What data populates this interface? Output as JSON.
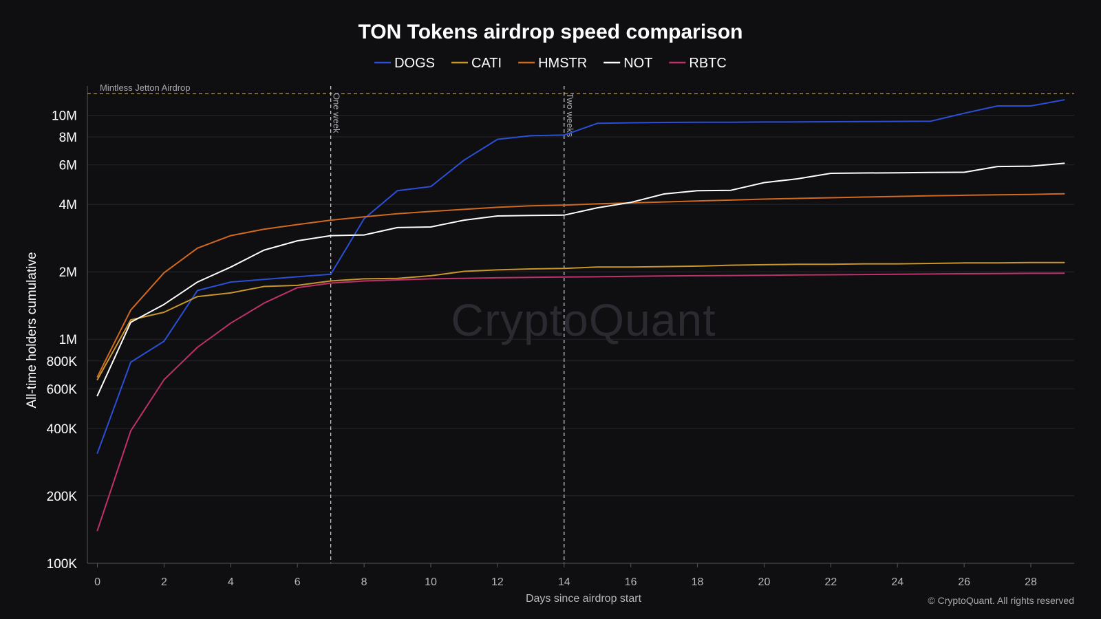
{
  "chart_data": {
    "type": "line",
    "title": "TON Tokens airdrop speed comparison",
    "xlabel": "Days since airdrop start",
    "ylabel": "All-time holders cumulative",
    "yscale": "log",
    "xlim": [
      -0.3,
      29.3
    ],
    "ylim": [
      100000,
      13500000
    ],
    "x_ticks": [
      0,
      2,
      4,
      6,
      8,
      10,
      12,
      14,
      16,
      18,
      20,
      22,
      24,
      26,
      28
    ],
    "y_ticks": [
      {
        "value": 100000,
        "label": "100K"
      },
      {
        "value": 200000,
        "label": "200K"
      },
      {
        "value": 400000,
        "label": "400K"
      },
      {
        "value": 600000,
        "label": "600K"
      },
      {
        "value": 800000,
        "label": "800K"
      },
      {
        "value": 1000000,
        "label": "1M"
      },
      {
        "value": 2000000,
        "label": "2M"
      },
      {
        "value": 4000000,
        "label": "4M"
      },
      {
        "value": 6000000,
        "label": "6M"
      },
      {
        "value": 8000000,
        "label": "8M"
      },
      {
        "value": 10000000,
        "label": "10M"
      }
    ],
    "grid": true,
    "legend": "top-center",
    "x": [
      0,
      1,
      2,
      3,
      4,
      5,
      6,
      7,
      8,
      9,
      10,
      11,
      12,
      13,
      14,
      15,
      16,
      17,
      18,
      19,
      20,
      21,
      22,
      23,
      24,
      25,
      26,
      27,
      28,
      29
    ],
    "series": [
      {
        "name": "DOGS",
        "color": "#2b4fd6",
        "values": [
          310000,
          790000,
          980000,
          1650000,
          1800000,
          1850000,
          1900000,
          1950000,
          3450000,
          4600000,
          4800000,
          6300000,
          7800000,
          8100000,
          8150000,
          9200000,
          9250000,
          9280000,
          9300000,
          9300000,
          9320000,
          9330000,
          9350000,
          9360000,
          9380000,
          9400000,
          10200000,
          11000000,
          11000000,
          11700000
        ]
      },
      {
        "name": "CATI",
        "color": "#c8962a",
        "values": [
          660000,
          1220000,
          1320000,
          1550000,
          1610000,
          1720000,
          1740000,
          1820000,
          1860000,
          1870000,
          1920000,
          2010000,
          2040000,
          2060000,
          2070000,
          2100000,
          2100000,
          2110000,
          2120000,
          2140000,
          2150000,
          2160000,
          2160000,
          2170000,
          2170000,
          2180000,
          2190000,
          2190000,
          2200000,
          2200000
        ]
      },
      {
        "name": "HMSTR",
        "color": "#d3691f",
        "values": [
          680000,
          1350000,
          1980000,
          2550000,
          2900000,
          3100000,
          3250000,
          3400000,
          3520000,
          3630000,
          3720000,
          3800000,
          3880000,
          3940000,
          3970000,
          4020000,
          4060000,
          4100000,
          4140000,
          4180000,
          4220000,
          4250000,
          4280000,
          4310000,
          4340000,
          4370000,
          4390000,
          4410000,
          4430000,
          4460000
        ]
      },
      {
        "name": "NOT",
        "color": "#ffffff",
        "values": [
          560000,
          1190000,
          1430000,
          1800000,
          2100000,
          2500000,
          2750000,
          2900000,
          2920000,
          3150000,
          3170000,
          3400000,
          3550000,
          3570000,
          3580000,
          3860000,
          4080000,
          4450000,
          4600000,
          4620000,
          5000000,
          5200000,
          5500000,
          5520000,
          5530000,
          5550000,
          5560000,
          5900000,
          5920000,
          6100000
        ]
      },
      {
        "name": "RBTC",
        "color": "#c0306a",
        "values": [
          140000,
          390000,
          660000,
          920000,
          1180000,
          1450000,
          1700000,
          1780000,
          1820000,
          1840000,
          1860000,
          1870000,
          1880000,
          1890000,
          1895000,
          1900000,
          1910000,
          1915000,
          1920000,
          1925000,
          1930000,
          1935000,
          1940000,
          1945000,
          1950000,
          1955000,
          1960000,
          1965000,
          1968000,
          1970000
        ]
      }
    ],
    "annotations": {
      "hline": {
        "value": 12500000,
        "label": "Mintless Jetton Airdrop",
        "color": "#c8962a"
      },
      "vlines": [
        {
          "x": 7,
          "label": "One week"
        },
        {
          "x": 14,
          "label": "Two weeks"
        }
      ]
    },
    "watermark": "CryptoQuant",
    "copyright": "© CryptoQuant. All rights reserved"
  }
}
